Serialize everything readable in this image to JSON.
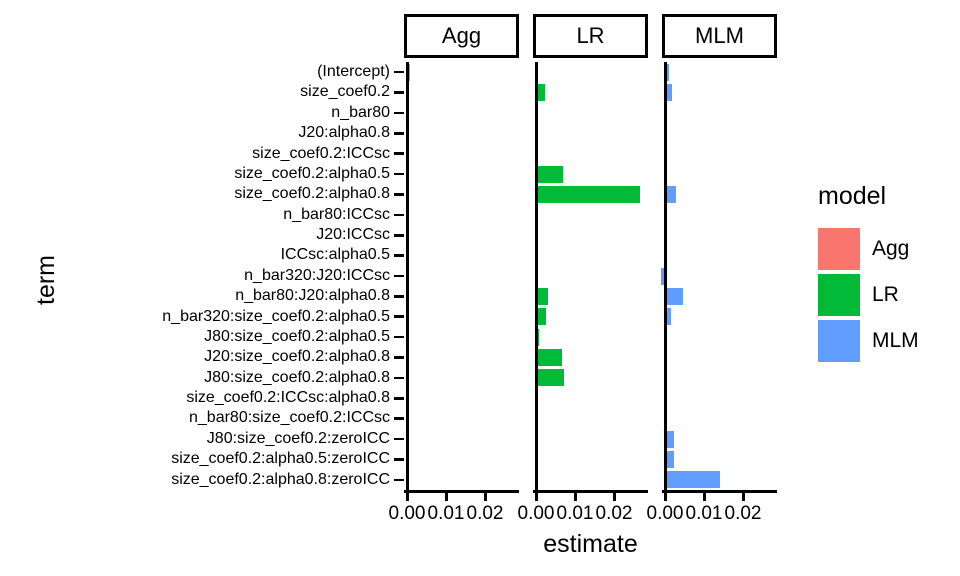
{
  "figure": {
    "y_axis_title": "term",
    "x_axis_title": "estimate",
    "legend_title": "model"
  },
  "chart_data": {
    "type": "bar",
    "orientation": "horizontal",
    "title": "",
    "xlabel": "estimate",
    "ylabel": "term",
    "grid": false,
    "legend_position": "right",
    "legend_title": "model",
    "facets": [
      "Agg",
      "LR",
      "MLM"
    ],
    "x_ticks": [
      0.0,
      0.01,
      0.02
    ],
    "x_tick_labels": [
      "0.00",
      "0.01",
      "0.02"
    ],
    "xlim": [
      -0.001,
      0.028
    ],
    "categories": [
      "(Intercept)",
      "size_coef0.2",
      "n_bar80",
      "J20:alpha0.8",
      "size_coef0.2:ICCsc",
      "size_coef0.2:alpha0.5",
      "size_coef0.2:alpha0.8",
      "n_bar80:ICCsc",
      "J20:ICCsc",
      "ICCsc:alpha0.5",
      "n_bar320:J20:ICCsc",
      "n_bar80:J20:alpha0.8",
      "n_bar320:size_coef0.2:alpha0.5",
      "J80:size_coef0.2:alpha0.5",
      "J20:size_coef0.2:alpha0.8",
      "J80:size_coef0.2:alpha0.8",
      "size_coef0.2:ICCsc:alpha0.8",
      "n_bar80:size_coef0.2:ICCsc",
      "J80:size_coef0.2:zeroICC",
      "size_coef0.2:alpha0.5:zeroICC",
      "size_coef0.2:alpha0.8:zeroICC"
    ],
    "series": [
      {
        "name": "Agg",
        "color": "#F8766D",
        "values": [
          0.0007,
          0,
          0,
          0,
          0,
          0,
          0,
          0,
          0,
          0,
          0,
          0,
          0,
          0,
          0,
          0,
          0,
          0,
          0,
          0,
          0
        ]
      },
      {
        "name": "LR",
        "color": "#00BA38",
        "values": [
          0,
          0.0024,
          0,
          0.0005,
          0,
          0.0068,
          0.0267,
          0,
          0,
          0,
          0,
          0.003,
          0.0026,
          0.0007,
          0.0066,
          0.0072,
          0,
          0,
          0,
          0,
          0
        ]
      },
      {
        "name": "MLM",
        "color": "#619CFF",
        "values": [
          0.0009,
          0.0019,
          0.0004,
          0,
          0,
          0,
          0.0028,
          0,
          0,
          0,
          -0.0011,
          0.0047,
          0.0016,
          0,
          0,
          0,
          0,
          0,
          0.0023,
          0.0023,
          0.0142
        ]
      }
    ]
  }
}
